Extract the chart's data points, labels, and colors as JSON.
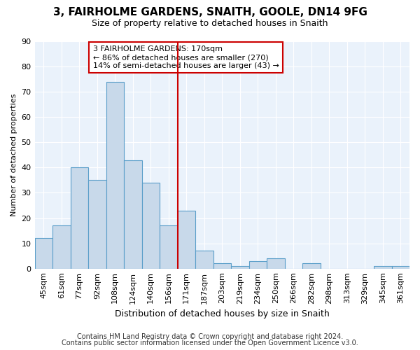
{
  "title1": "3, FAIRHOLME GARDENS, SNAITH, GOOLE, DN14 9FG",
  "title2": "Size of property relative to detached houses in Snaith",
  "xlabel": "Distribution of detached houses by size in Snaith",
  "ylabel": "Number of detached properties",
  "categories": [
    "45sqm",
    "61sqm",
    "77sqm",
    "92sqm",
    "108sqm",
    "124sqm",
    "140sqm",
    "156sqm",
    "171sqm",
    "187sqm",
    "203sqm",
    "219sqm",
    "234sqm",
    "250sqm",
    "266sqm",
    "282sqm",
    "298sqm",
    "313sqm",
    "329sqm",
    "345sqm",
    "361sqm"
  ],
  "values": [
    12,
    17,
    40,
    35,
    74,
    43,
    34,
    17,
    23,
    7,
    2,
    1,
    3,
    4,
    0,
    2,
    0,
    0,
    0,
    1,
    1
  ],
  "bar_color": "#c8d9ea",
  "bar_edge_color": "#5a9ec9",
  "vline_index": 8,
  "vline_color": "#cc0000",
  "annotation_text": "3 FAIRHOLME GARDENS: 170sqm\n← 86% of detached houses are smaller (270)\n14% of semi-detached houses are larger (43) →",
  "annotation_box_color": "#cc0000",
  "ylim": [
    0,
    90
  ],
  "yticks": [
    0,
    10,
    20,
    30,
    40,
    50,
    60,
    70,
    80,
    90
  ],
  "footer1": "Contains HM Land Registry data © Crown copyright and database right 2024.",
  "footer2": "Contains public sector information licensed under the Open Government Licence v3.0.",
  "fig_bg_color": "#ffffff",
  "plot_bg_color": "#eaf2fb",
  "grid_color": "#ffffff",
  "title1_fontsize": 11,
  "title2_fontsize": 9,
  "xlabel_fontsize": 9,
  "ylabel_fontsize": 8,
  "tick_fontsize": 8,
  "annotation_fontsize": 8,
  "footer_fontsize": 7
}
